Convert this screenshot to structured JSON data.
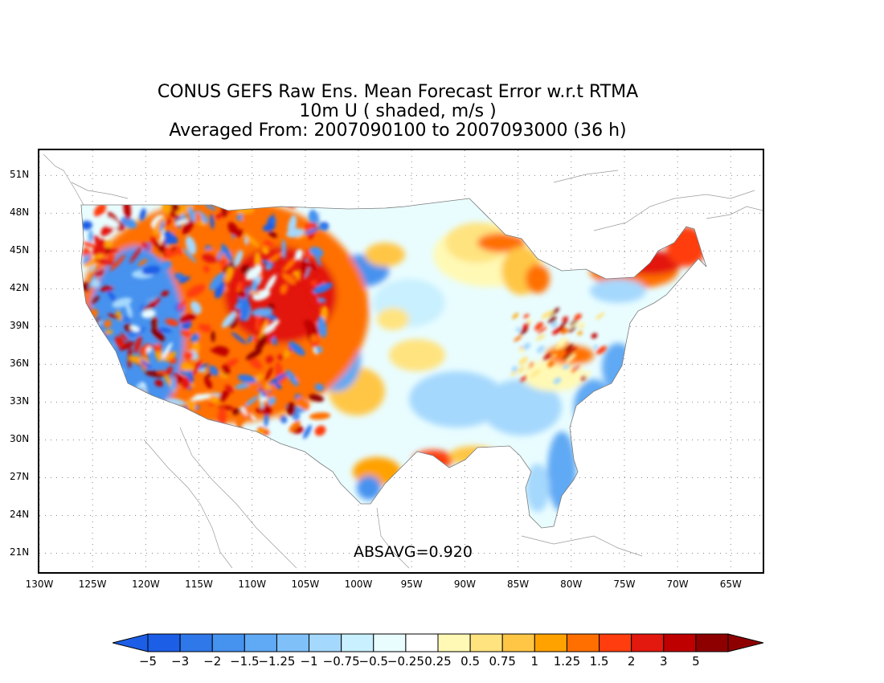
{
  "title": {
    "line1": "CONUS GEFS Raw Ens. Mean Forecast Error w.r.t RTMA",
    "line2": "10m U ( shaded, m/s )",
    "line3": "Averaged From: 2007090100 to 2007093000 (36 h)"
  },
  "annotation": "ABSAVG=0.920",
  "map": {
    "lat_ticks": [
      "51N",
      "48N",
      "45N",
      "42N",
      "39N",
      "36N",
      "33N",
      "30N",
      "27N",
      "24N",
      "21N"
    ],
    "lat_values": [
      51,
      48,
      45,
      42,
      39,
      36,
      33,
      30,
      27,
      24,
      21
    ],
    "lon_ticks": [
      "130W",
      "125W",
      "120W",
      "115W",
      "110W",
      "105W",
      "100W",
      "95W",
      "90W",
      "85W",
      "80W",
      "75W",
      "70W",
      "65W"
    ],
    "lon_values": [
      -130,
      -125,
      -120,
      -115,
      -110,
      -105,
      -100,
      -95,
      -90,
      -85,
      -80,
      -75,
      -70,
      -65
    ],
    "lon_range": [
      -130,
      -62
    ],
    "lat_range": [
      19.5,
      53
    ],
    "grid": true,
    "grid_style": "dotted"
  },
  "colorbar": {
    "labels": [
      "−5",
      "−3",
      "−2",
      "−1.5",
      "−1.25",
      "−1",
      "−0.75",
      "−0.5",
      "−0.25",
      "0.25",
      "0.5",
      "0.75",
      "1",
      "1.25",
      "1.5",
      "2",
      "3",
      "5"
    ],
    "colors": [
      "#1c5ee6",
      "#2f78ea",
      "#4692ef",
      "#60a9f4",
      "#7fc0f9",
      "#a5d8fd",
      "#c9f0fe",
      "#e9fdff",
      "#ffffff",
      "#fff9b5",
      "#ffe37f",
      "#ffc645",
      "#ffa200",
      "#ff6f00",
      "#ff3d0e",
      "#e3180e",
      "#bf0000",
      "#8e0000"
    ],
    "color_min_arrow": "#1c5ee6",
    "color_max_arrow": "#8e0000"
  }
}
